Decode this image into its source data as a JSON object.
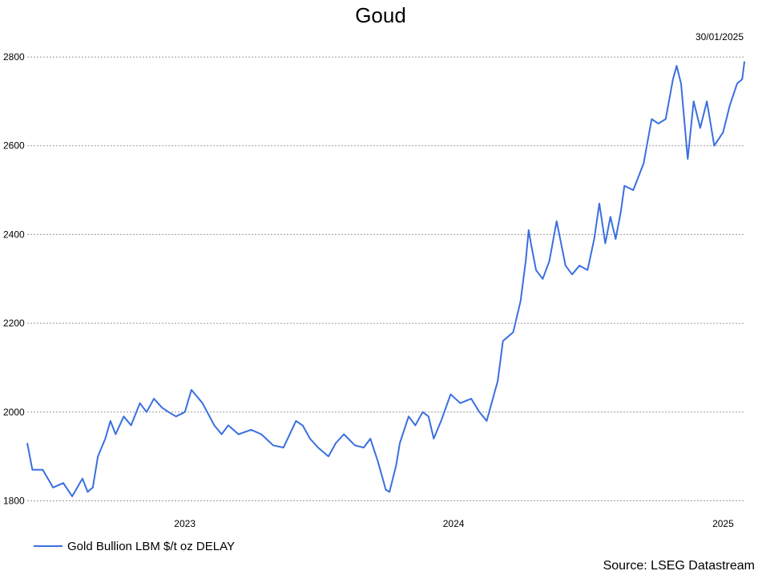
{
  "chart_data": {
    "type": "line",
    "title": "Goud",
    "date_label": "30/01/2025",
    "source": "Source: LSEG Datastream",
    "ylim": [
      1790,
      2820
    ],
    "yticks": [
      1800,
      2000,
      2200,
      2400,
      2600,
      2800
    ],
    "xlim": [
      "2022-06-01",
      "2025-01-31"
    ],
    "xticks": [
      {
        "label": "2023",
        "date": "2023-01-01"
      },
      {
        "label": "2024",
        "date": "2024-01-01"
      },
      {
        "label": "2025",
        "date": "2025-01-01"
      }
    ],
    "grid": true,
    "legend_position": "bottom-left",
    "series": [
      {
        "name": "Gold Bullion LBM $/t oz DELAY",
        "color": "#3a6fe0",
        "points": [
          [
            "2022-06-01",
            1930
          ],
          [
            "2022-06-08",
            1870
          ],
          [
            "2022-06-22",
            1870
          ],
          [
            "2022-07-06",
            1830
          ],
          [
            "2022-07-20",
            1840
          ],
          [
            "2022-08-01",
            1810
          ],
          [
            "2022-08-15",
            1850
          ],
          [
            "2022-08-22",
            1820
          ],
          [
            "2022-08-29",
            1830
          ],
          [
            "2022-09-05",
            1900
          ],
          [
            "2022-09-15",
            1940
          ],
          [
            "2022-09-22",
            1980
          ],
          [
            "2022-09-29",
            1950
          ],
          [
            "2022-10-10",
            1990
          ],
          [
            "2022-10-20",
            1970
          ],
          [
            "2022-11-01",
            2020
          ],
          [
            "2022-11-10",
            2000
          ],
          [
            "2022-11-20",
            2030
          ],
          [
            "2022-12-01",
            2010
          ],
          [
            "2022-12-10",
            2000
          ],
          [
            "2022-12-20",
            1990
          ],
          [
            "2023-01-01",
            2000
          ],
          [
            "2023-01-10",
            2050
          ],
          [
            "2023-01-25",
            2020
          ],
          [
            "2023-02-10",
            1970
          ],
          [
            "2023-02-20",
            1950
          ],
          [
            "2023-03-01",
            1970
          ],
          [
            "2023-03-15",
            1950
          ],
          [
            "2023-04-01",
            1960
          ],
          [
            "2023-04-15",
            1950
          ],
          [
            "2023-05-01",
            1925
          ],
          [
            "2023-05-15",
            1920
          ],
          [
            "2023-06-01",
            1980
          ],
          [
            "2023-06-10",
            1970
          ],
          [
            "2023-06-20",
            1940
          ],
          [
            "2023-07-01",
            1920
          ],
          [
            "2023-07-15",
            1900
          ],
          [
            "2023-07-25",
            1930
          ],
          [
            "2023-08-05",
            1950
          ],
          [
            "2023-08-20",
            1925
          ],
          [
            "2023-09-01",
            1920
          ],
          [
            "2023-09-10",
            1940
          ],
          [
            "2023-09-20",
            1890
          ],
          [
            "2023-10-01",
            1825
          ],
          [
            "2023-10-06",
            1820
          ],
          [
            "2023-10-15",
            1880
          ],
          [
            "2023-10-20",
            1930
          ],
          [
            "2023-11-01",
            1990
          ],
          [
            "2023-11-10",
            1970
          ],
          [
            "2023-11-20",
            2000
          ],
          [
            "2023-11-28",
            1990
          ],
          [
            "2023-12-05",
            1940
          ],
          [
            "2023-12-15",
            1980
          ],
          [
            "2023-12-28",
            2040
          ],
          [
            "2024-01-10",
            2020
          ],
          [
            "2024-01-25",
            2030
          ],
          [
            "2024-02-05",
            2000
          ],
          [
            "2024-02-15",
            1980
          ],
          [
            "2024-03-01",
            2070
          ],
          [
            "2024-03-08",
            2160
          ],
          [
            "2024-03-15",
            2170
          ],
          [
            "2024-03-22",
            2180
          ],
          [
            "2024-04-01",
            2250
          ],
          [
            "2024-04-08",
            2340
          ],
          [
            "2024-04-12",
            2410
          ],
          [
            "2024-04-15",
            2380
          ],
          [
            "2024-04-22",
            2320
          ],
          [
            "2024-05-01",
            2300
          ],
          [
            "2024-05-10",
            2340
          ],
          [
            "2024-05-20",
            2430
          ],
          [
            "2024-06-01",
            2330
          ],
          [
            "2024-06-10",
            2310
          ],
          [
            "2024-06-20",
            2330
          ],
          [
            "2024-07-01",
            2320
          ],
          [
            "2024-07-10",
            2390
          ],
          [
            "2024-07-17",
            2470
          ],
          [
            "2024-07-25",
            2380
          ],
          [
            "2024-08-01",
            2440
          ],
          [
            "2024-08-08",
            2390
          ],
          [
            "2024-08-15",
            2450
          ],
          [
            "2024-08-20",
            2510
          ],
          [
            "2024-09-01",
            2500
          ],
          [
            "2024-09-15",
            2560
          ],
          [
            "2024-09-26",
            2660
          ],
          [
            "2024-10-05",
            2650
          ],
          [
            "2024-10-15",
            2660
          ],
          [
            "2024-10-25",
            2750
          ],
          [
            "2024-10-30",
            2780
          ],
          [
            "2024-11-05",
            2740
          ],
          [
            "2024-11-14",
            2570
          ],
          [
            "2024-11-22",
            2700
          ],
          [
            "2024-12-01",
            2640
          ],
          [
            "2024-12-10",
            2700
          ],
          [
            "2024-12-20",
            2600
          ],
          [
            "2025-01-01",
            2630
          ],
          [
            "2025-01-10",
            2690
          ],
          [
            "2025-01-20",
            2740
          ],
          [
            "2025-01-27",
            2750
          ],
          [
            "2025-01-30",
            2790
          ]
        ]
      }
    ]
  }
}
